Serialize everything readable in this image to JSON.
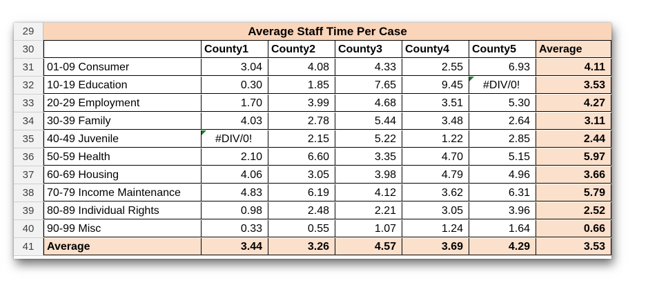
{
  "table": {
    "title": "Average Staff Time Per Case",
    "row_numbers": [
      "29",
      "30",
      "31",
      "32",
      "33",
      "34",
      "35",
      "36",
      "37",
      "38",
      "39",
      "40",
      "41"
    ],
    "headers": [
      "",
      "County1",
      "County2",
      "County3",
      "County4",
      "County5",
      "Average"
    ],
    "rows": [
      {
        "label": "01-09 Consumer",
        "values": [
          "3.04",
          "4.08",
          "4.33",
          "2.55",
          "6.93"
        ],
        "average": "4.11"
      },
      {
        "label": "10-19 Education",
        "values": [
          "0.30",
          "1.85",
          "7.65",
          "9.45",
          "#DIV/0!"
        ],
        "average": "3.53"
      },
      {
        "label": "20-29 Employment",
        "values": [
          "1.70",
          "3.99",
          "4.68",
          "3.51",
          "5.30"
        ],
        "average": "4.27"
      },
      {
        "label": "30-39 Family",
        "values": [
          "4.03",
          "2.78",
          "5.44",
          "3.48",
          "2.64"
        ],
        "average": "3.11"
      },
      {
        "label": "40-49 Juvenile",
        "values": [
          "#DIV/0!",
          "2.15",
          "5.22",
          "1.22",
          "2.85"
        ],
        "average": "2.44"
      },
      {
        "label": "50-59 Health",
        "values": [
          "2.10",
          "6.60",
          "3.35",
          "4.70",
          "5.15"
        ],
        "average": "5.97"
      },
      {
        "label": "60-69 Housing",
        "values": [
          "4.06",
          "3.05",
          "3.98",
          "4.79",
          "4.96"
        ],
        "average": "3.66"
      },
      {
        "label": "70-79 Income Maintenance",
        "values": [
          "4.83",
          "6.19",
          "4.12",
          "3.62",
          "6.31"
        ],
        "average": "5.79"
      },
      {
        "label": "80-89 Individual Rights",
        "values": [
          "0.98",
          "2.48",
          "2.21",
          "3.05",
          "3.96"
        ],
        "average": "2.52"
      },
      {
        "label": "90-99 Misc",
        "values": [
          "0.33",
          "0.55",
          "1.07",
          "1.24",
          "1.64"
        ],
        "average": "0.66"
      }
    ],
    "footer": {
      "label": "Average",
      "values": [
        "3.44",
        "3.26",
        "4.57",
        "3.69",
        "4.29"
      ],
      "average": "3.53"
    }
  },
  "colors": {
    "title_fill": "#fbd5b9",
    "average_fill": "#fbe0cc",
    "error_flag": "#1e7b2e"
  }
}
